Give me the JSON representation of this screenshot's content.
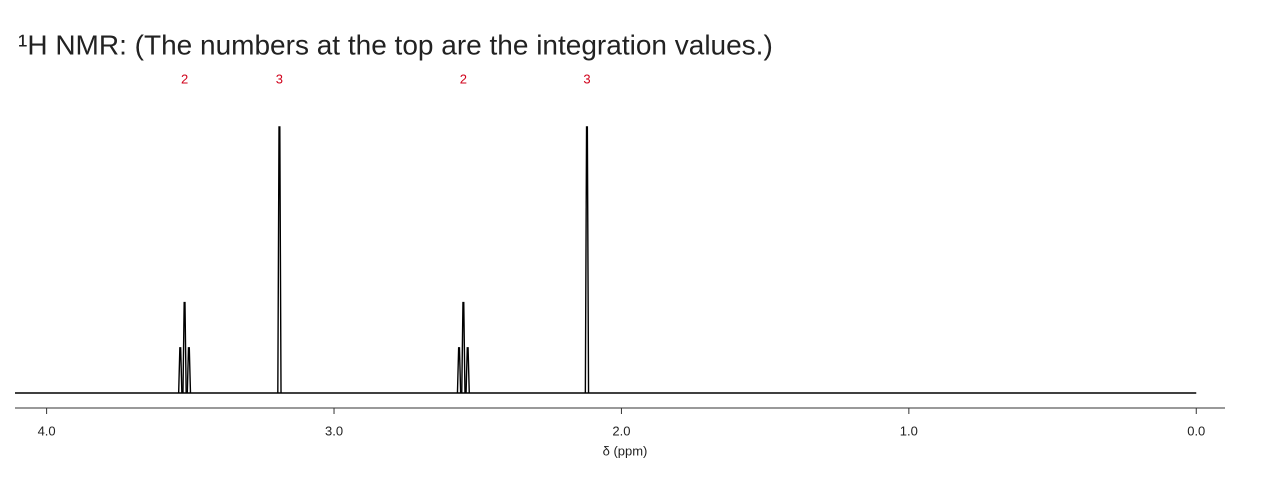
{
  "chart_data": {
    "type": "nmr",
    "title": "¹H NMR: (The numbers at the top are the integration values.)",
    "xlabel": "δ (ppm)",
    "xlim": [
      4.11,
      -0.1
    ],
    "xticks": [
      {
        "value": 4,
        "label": "4.0"
      },
      {
        "value": 3,
        "label": "3.0"
      },
      {
        "value": 2,
        "label": "2.0"
      },
      {
        "value": 1,
        "label": "1.0"
      },
      {
        "value": 0,
        "label": "0.0"
      }
    ],
    "ylim": [
      0,
      100
    ],
    "color": "#000000",
    "integration_color": "#d0021b",
    "peaks": [
      {
        "integration": 2,
        "lines": [
          {
            "shift": 3.535,
            "intensity": 17
          },
          {
            "shift": 3.52,
            "intensity": 34
          },
          {
            "shift": 3.505,
            "intensity": 17
          }
        ]
      },
      {
        "integration": 3,
        "lines": [
          {
            "shift": 3.19,
            "intensity": 100
          }
        ]
      },
      {
        "integration": 2,
        "lines": [
          {
            "shift": 2.565,
            "intensity": 17
          },
          {
            "shift": 2.55,
            "intensity": 34
          },
          {
            "shift": 2.535,
            "intensity": 17
          }
        ]
      },
      {
        "integration": 3,
        "lines": [
          {
            "shift": 2.12,
            "intensity": 100
          }
        ]
      }
    ]
  }
}
